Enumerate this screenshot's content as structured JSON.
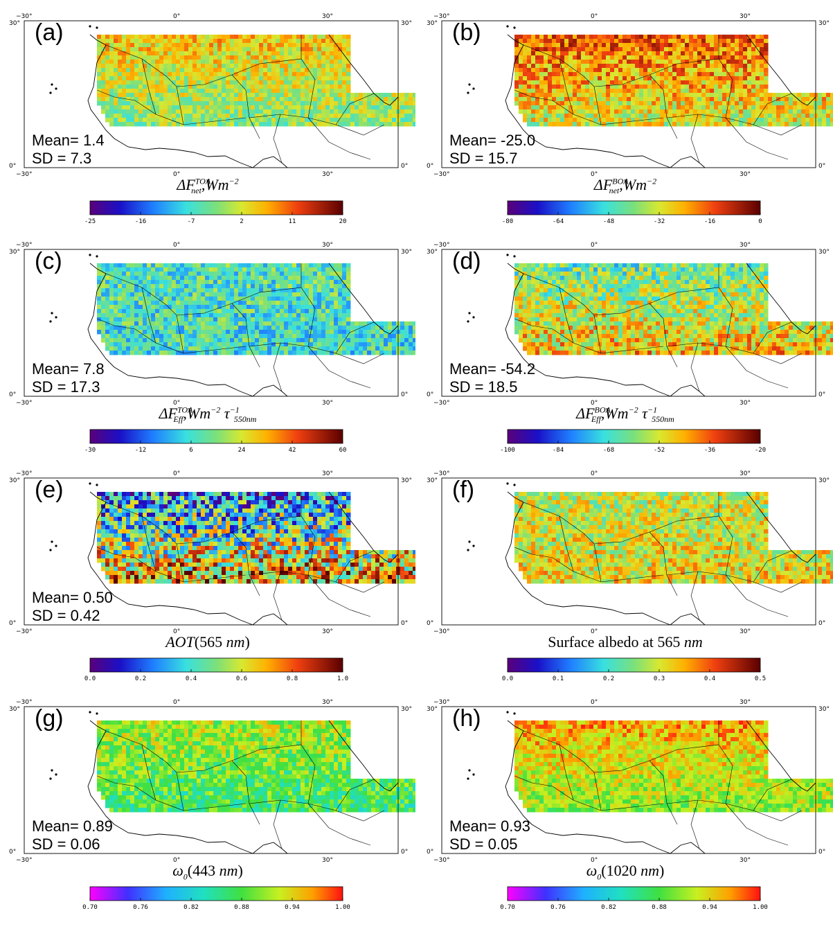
{
  "panels": [
    {
      "id": "a",
      "label": "(a)",
      "mean": "Mean= 1.4",
      "sd": "SD = 7.3",
      "title": {
        "base": "ΔF",
        "sup": "TOA",
        "sub": "net",
        "unit": ",Wm",
        "unit_exp": "−2",
        "tau": false
      },
      "colorbar": {
        "scheme": "rainbow",
        "min": -25,
        "max": 20,
        "ticks": [
          "-25",
          "-16",
          "-7",
          "2",
          "11",
          "20"
        ]
      },
      "field": {
        "type": "value-map",
        "mean": 1.4,
        "sd": 7.3
      }
    },
    {
      "id": "b",
      "label": "(b)",
      "mean": "Mean= -25.0",
      "sd": "SD = 15.7",
      "title": {
        "base": "ΔF",
        "sup": "BOA",
        "sub": "net",
        "unit": ",Wm",
        "unit_exp": "−2",
        "tau": false
      },
      "colorbar": {
        "scheme": "rainbow",
        "min": -80,
        "max": 0,
        "ticks": [
          "-80",
          "-64",
          "-48",
          "-32",
          "-16",
          "0"
        ]
      },
      "field": {
        "type": "value-map",
        "mean": -25.0,
        "sd": 15.7
      }
    },
    {
      "id": "c",
      "label": "(c)",
      "mean": "Mean= 7.8",
      "sd": "SD = 17.3",
      "title": {
        "base": "ΔF",
        "sup": "TOA",
        "sub": "Eff",
        "unit": ",Wm",
        "unit_exp": "−2",
        "tau": true,
        "tau_exp": "−1",
        "tau_sub": "550nm"
      },
      "colorbar": {
        "scheme": "rainbow",
        "min": -30,
        "max": 60,
        "ticks": [
          "-30",
          "-12",
          "6",
          "24",
          "42",
          "60"
        ]
      },
      "field": {
        "type": "value-map",
        "mean": 7.8,
        "sd": 17.3
      }
    },
    {
      "id": "d",
      "label": "(d)",
      "mean": "Mean= -54.2",
      "sd": "SD = 18.5",
      "title": {
        "base": "ΔF",
        "sup": "BOA",
        "sub": "Eff",
        "unit": ",Wm",
        "unit_exp": "−2",
        "tau": true,
        "tau_exp": "−1",
        "tau_sub": "550nm"
      },
      "colorbar": {
        "scheme": "rainbow",
        "min": -100,
        "max": -20,
        "ticks": [
          "-100",
          "-84",
          "-68",
          "-52",
          "-36",
          "-20"
        ]
      },
      "field": {
        "type": "value-map",
        "mean": -54.2,
        "sd": 18.5
      }
    },
    {
      "id": "e",
      "label": "(e)",
      "mean": "Mean= 0.50",
      "sd": "SD = 0.42",
      "title": {
        "text_it": "AOT",
        "text": "(565 ",
        "text_it2": "nm",
        "text_end": ")"
      },
      "colorbar": {
        "scheme": "rainbow",
        "min": 0.0,
        "max": 1.0,
        "ticks": [
          "0.0",
          "0.2",
          "0.4",
          "0.6",
          "0.8",
          "1.0"
        ]
      },
      "field": {
        "type": "value-map",
        "mean": 0.5,
        "sd": 0.42
      }
    },
    {
      "id": "f",
      "label": "(f)",
      "mean": "",
      "sd": "",
      "title": {
        "text": "Surface albedo at 565 ",
        "text_it2": "nm"
      },
      "colorbar": {
        "scheme": "rainbow",
        "min": 0.0,
        "max": 0.5,
        "ticks": [
          "0.0",
          "0.1",
          "0.2",
          "0.3",
          "0.4",
          "0.5"
        ]
      },
      "field": {
        "type": "value-map",
        "mean": 0.3,
        "sd": 0.1
      }
    },
    {
      "id": "g",
      "label": "(g)",
      "mean": "Mean= 0.89",
      "sd": "SD = 0.06",
      "title": {
        "omega": true,
        "text": "(443 ",
        "text_it2": "nm",
        "text_end": ")"
      },
      "colorbar": {
        "scheme": "omega",
        "min": 0.7,
        "max": 1.0,
        "ticks": [
          "0.70",
          "0.76",
          "0.82",
          "0.88",
          "0.94",
          "1.00"
        ]
      },
      "field": {
        "type": "value-map",
        "mean": 0.89,
        "sd": 0.06
      }
    },
    {
      "id": "h",
      "label": "(h)",
      "mean": "Mean= 0.93",
      "sd": "SD = 0.05",
      "title": {
        "omega": true,
        "text": "(1020 ",
        "text_it2": "nm",
        "text_end": ")"
      },
      "colorbar": {
        "scheme": "omega",
        "min": 0.7,
        "max": 1.0,
        "ticks": [
          "0.70",
          "0.76",
          "0.82",
          "0.88",
          "0.94",
          "1.00"
        ]
      },
      "field": {
        "type": "value-map",
        "mean": 0.93,
        "sd": 0.05
      }
    }
  ],
  "axes": {
    "lon_ticks": [
      "−30°",
      "0°",
      "30°"
    ],
    "lat_ticks": [
      "30°",
      "0°"
    ]
  }
}
